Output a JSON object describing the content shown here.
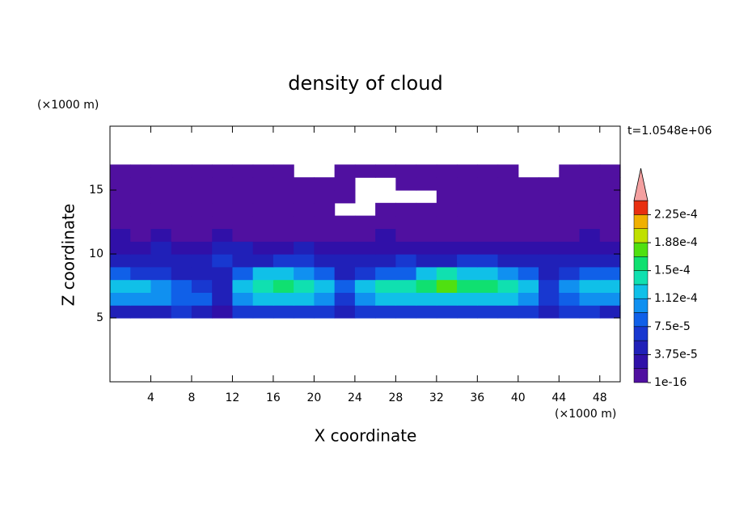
{
  "chart_data": {
    "type": "contour",
    "title": "density of cloud",
    "x_label": "X coordinate",
    "y_label": "Z coordinate",
    "x_unit": "(×1000 m)",
    "y_unit": "(×1000 m)",
    "annotation": "t=1.0548e+06",
    "xlim": [
      0,
      50
    ],
    "ylim": [
      0,
      20
    ],
    "xticks": [
      4,
      8,
      12,
      16,
      20,
      24,
      28,
      32,
      36,
      40,
      44,
      48
    ],
    "yticks": [
      5,
      10,
      15
    ],
    "x": [
      0,
      2,
      4,
      6,
      8,
      10,
      12,
      14,
      16,
      18,
      20,
      22,
      24,
      26,
      28,
      30,
      32,
      34,
      36,
      38,
      40,
      42,
      44,
      46,
      48,
      50
    ],
    "y": [
      5,
      6,
      7,
      8,
      9,
      10,
      11,
      12,
      13,
      14,
      15,
      16,
      17
    ],
    "z": [
      [
        4.5e-05,
        4.5e-05,
        4.5e-05,
        6.5e-05,
        4.5e-05,
        2.5e-05,
        6.5e-05,
        6.5e-05,
        6.5e-05,
        6.5e-05,
        6.5e-05,
        4.5e-05,
        6.5e-05,
        6.5e-05,
        6.5e-05,
        6.5e-05,
        6.5e-05,
        6.5e-05,
        6.5e-05,
        6.5e-05,
        6.5e-05,
        4.5e-05,
        6.5e-05,
        6.5e-05,
        4.5e-05
      ],
      [
        0.0001,
        0.0001,
        0.0001,
        8.5e-05,
        8.5e-05,
        4.5e-05,
        0.0001,
        0.00012,
        0.00012,
        0.00012,
        0.0001,
        6.5e-05,
        0.0001,
        0.00012,
        0.00012,
        0.00012,
        0.00012,
        0.00012,
        0.00012,
        0.00012,
        0.0001,
        6.5e-05,
        8.5e-05,
        0.0001,
        0.0001
      ],
      [
        0.00012,
        0.00012,
        0.0001,
        8.5e-05,
        6.5e-05,
        4.5e-05,
        0.00012,
        0.00014,
        0.00016,
        0.00014,
        0.00012,
        8.5e-05,
        0.00012,
        0.00014,
        0.00014,
        0.00016,
        0.00018,
        0.00016,
        0.00016,
        0.00014,
        0.00012,
        6.5e-05,
        0.0001,
        0.00012,
        0.00012
      ],
      [
        8.5e-05,
        6.5e-05,
        6.5e-05,
        4.5e-05,
        4.5e-05,
        4.5e-05,
        8.5e-05,
        0.00012,
        0.00012,
        0.0001,
        8.5e-05,
        4.5e-05,
        6.5e-05,
        8.5e-05,
        8.5e-05,
        0.00012,
        0.00014,
        0.00012,
        0.00012,
        0.0001,
        8.5e-05,
        4.5e-05,
        6.5e-05,
        8.5e-05,
        8.5e-05
      ],
      [
        4.5e-05,
        4.5e-05,
        4.5e-05,
        4.5e-05,
        4.5e-05,
        6.5e-05,
        4.5e-05,
        4.5e-05,
        6.5e-05,
        6.5e-05,
        4.5e-05,
        4.5e-05,
        4.5e-05,
        4.5e-05,
        6.5e-05,
        4.5e-05,
        4.5e-05,
        6.5e-05,
        6.5e-05,
        4.5e-05,
        4.5e-05,
        4.5e-05,
        4.5e-05,
        4.5e-05,
        4.5e-05
      ],
      [
        2.5e-05,
        2.5e-05,
        4.5e-05,
        2.5e-05,
        2.5e-05,
        4.5e-05,
        4.5e-05,
        2.5e-05,
        2.5e-05,
        4.5e-05,
        2.5e-05,
        2.5e-05,
        2.5e-05,
        2.5e-05,
        2.5e-05,
        2.5e-05,
        2.5e-05,
        2.5e-05,
        2.5e-05,
        2.5e-05,
        2.5e-05,
        2.5e-05,
        2.5e-05,
        2.5e-05,
        2.5e-05
      ],
      [
        2.5e-05,
        1e-05,
        2.5e-05,
        1e-05,
        1e-05,
        2.5e-05,
        1e-05,
        1e-05,
        1e-05,
        1e-05,
        1e-05,
        1e-05,
        1e-05,
        2.5e-05,
        1e-05,
        1e-05,
        1e-05,
        1e-05,
        1e-05,
        1e-05,
        1e-05,
        1e-05,
        1e-05,
        2.5e-05,
        1e-05
      ],
      [
        1e-05,
        1e-05,
        1e-05,
        1e-05,
        1e-05,
        1e-05,
        1e-05,
        1e-05,
        1e-05,
        1e-05,
        1e-05,
        1e-05,
        1e-05,
        1e-05,
        1e-05,
        1e-05,
        1e-05,
        1e-05,
        1e-05,
        1e-05,
        1e-05,
        1e-05,
        1e-05,
        1e-05,
        1e-05
      ],
      [
        1e-05,
        1e-05,
        1e-05,
        1e-05,
        1e-05,
        1e-05,
        1e-05,
        1e-05,
        1e-05,
        1e-05,
        1e-05,
        null,
        null,
        1e-05,
        1e-05,
        1e-05,
        1e-05,
        1e-05,
        1e-05,
        1e-05,
        1e-05,
        1e-05,
        1e-05,
        1e-05,
        1e-05
      ],
      [
        1e-05,
        1e-05,
        1e-05,
        1e-05,
        1e-05,
        1e-05,
        1e-05,
        1e-05,
        1e-05,
        1e-05,
        1e-05,
        1e-05,
        null,
        null,
        null,
        null,
        1e-05,
        1e-05,
        1e-05,
        1e-05,
        1e-05,
        1e-05,
        1e-05,
        1e-05,
        1e-05
      ],
      [
        1e-05,
        1e-05,
        1e-05,
        1e-05,
        1e-05,
        1e-05,
        1e-05,
        1e-05,
        1e-05,
        1e-05,
        1e-05,
        1e-05,
        null,
        null,
        1e-05,
        1e-05,
        1e-05,
        1e-05,
        1e-05,
        1e-05,
        1e-05,
        1e-05,
        1e-05,
        1e-05,
        1e-05
      ],
      [
        1e-05,
        1e-05,
        1e-05,
        1e-05,
        1e-05,
        1e-05,
        1e-05,
        1e-05,
        1e-05,
        null,
        null,
        1e-05,
        1e-05,
        1e-05,
        1e-05,
        1e-05,
        1e-05,
        1e-05,
        1e-05,
        1e-05,
        null,
        null,
        1e-05,
        1e-05,
        1e-05
      ]
    ],
    "levels": [
      1e-16,
      1.875e-05,
      3.75e-05,
      5.625e-05,
      7.5e-05,
      9.375e-05,
      0.0001125,
      0.00013125,
      0.00015,
      0.00016875,
      0.0001875,
      0.00020625,
      0.000225,
      0.00024375
    ],
    "colors": [
      "#5010a0",
      "#3010a8",
      "#2020b8",
      "#1838d0",
      "#1060e8",
      "#1090f0",
      "#10c0e8",
      "#10e0b0",
      "#10e070",
      "#50e010",
      "#c0e000",
      "#f0b000",
      "#e83010"
    ],
    "extend_color": "#f4a0a0",
    "colorbar_ticks": [
      {
        "value": 1e-16,
        "label": "1e-16"
      },
      {
        "value": 3.75e-05,
        "label": "3.75e-5"
      },
      {
        "value": 7.5e-05,
        "label": "7.5e-5"
      },
      {
        "value": 0.0001125,
        "label": "1.12e-4"
      },
      {
        "value": 0.00015,
        "label": "1.5e-4"
      },
      {
        "value": 0.0001875,
        "label": "1.88e-4"
      },
      {
        "value": 0.000225,
        "label": "2.25e-4"
      }
    ]
  }
}
